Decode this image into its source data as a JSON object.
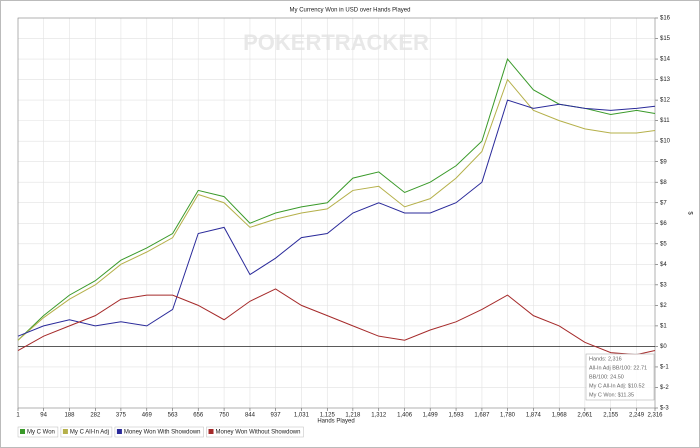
{
  "chart_data": {
    "type": "line",
    "title": "My Currency Won in USD over Hands Played",
    "watermark": "POKERTRACKER",
    "x_label": "Hands Played",
    "y_label": "$",
    "x": [
      1,
      94,
      188,
      282,
      375,
      469,
      563,
      656,
      750,
      844,
      937,
      1031,
      1125,
      1218,
      1312,
      1406,
      1499,
      1593,
      1687,
      1780,
      1874,
      1968,
      2061,
      2155,
      2249,
      2316
    ],
    "xlim": [
      1,
      2316
    ],
    "xticks": [
      1,
      94,
      188,
      282,
      375,
      469,
      563,
      656,
      750,
      844,
      937,
      {
        "value": 1031,
        "label": "1,031"
      },
      {
        "value": 1125,
        "label": "1,125"
      },
      {
        "value": 1218,
        "label": "1,218"
      },
      {
        "value": 1312,
        "label": "1,312"
      },
      {
        "value": 1406,
        "label": "1,406"
      },
      {
        "value": 1499,
        "label": "1,499"
      },
      {
        "value": 1593,
        "label": "1,593"
      },
      {
        "value": 1687,
        "label": "1,687"
      },
      {
        "value": 1780,
        "label": "1,780"
      },
      {
        "value": 1874,
        "label": "1,874"
      },
      {
        "value": 1968,
        "label": "1,968"
      },
      {
        "value": 2061,
        "label": "2,061"
      },
      {
        "value": 2155,
        "label": "2,155"
      },
      {
        "value": 2249,
        "label": "2,249"
      },
      {
        "value": 2316,
        "label": "2,316"
      }
    ],
    "ylim": [
      -3,
      16
    ],
    "yticks": [
      {
        "value": -3,
        "label": "$-3"
      },
      {
        "value": -2,
        "label": "$-2"
      },
      {
        "value": -1,
        "label": "$-1"
      },
      {
        "value": 0,
        "label": "$0"
      },
      {
        "value": 1,
        "label": "$1"
      },
      {
        "value": 2,
        "label": "$2"
      },
      {
        "value": 3,
        "label": "$3"
      },
      {
        "value": 4,
        "label": "$4"
      },
      {
        "value": 5,
        "label": "$5"
      },
      {
        "value": 6,
        "label": "$6"
      },
      {
        "value": 7,
        "label": "$7"
      },
      {
        "value": 8,
        "label": "$8"
      },
      {
        "value": 9,
        "label": "$9"
      },
      {
        "value": 10,
        "label": "$10"
      },
      {
        "value": 11,
        "label": "$11"
      },
      {
        "value": 12,
        "label": "$12"
      },
      {
        "value": 13,
        "label": "$13"
      },
      {
        "value": 14,
        "label": "$14"
      },
      {
        "value": 15,
        "label": "$15"
      },
      {
        "value": 16,
        "label": "$16"
      }
    ],
    "grid": true,
    "legend": "bottom",
    "series": [
      {
        "name": "My C Won",
        "color": "#3a9a2a",
        "values": [
          0.3,
          1.5,
          2.5,
          3.2,
          4.2,
          4.8,
          5.5,
          7.6,
          7.3,
          6.0,
          6.5,
          6.8,
          7.0,
          8.2,
          8.5,
          7.5,
          8.0,
          8.8,
          10.0,
          14.0,
          12.5,
          11.8,
          11.6,
          11.3,
          11.5,
          11.35
        ]
      },
      {
        "name": "My C All-In Adj",
        "color": "#b5b04a",
        "values": [
          0.3,
          1.4,
          2.3,
          3.0,
          4.0,
          4.6,
          5.3,
          7.4,
          7.0,
          5.8,
          6.2,
          6.5,
          6.7,
          7.6,
          7.8,
          6.8,
          7.2,
          8.2,
          9.5,
          13.0,
          11.5,
          11.0,
          10.6,
          10.4,
          10.4,
          10.52
        ]
      },
      {
        "name": "Money Won With Showdown",
        "color": "#2a2a9a",
        "values": [
          0.5,
          1.0,
          1.3,
          1.0,
          1.2,
          1.0,
          1.8,
          5.5,
          5.8,
          3.5,
          4.3,
          5.3,
          5.5,
          6.5,
          7.0,
          6.5,
          6.5,
          7.0,
          8.0,
          12.0,
          11.6,
          11.8,
          11.6,
          11.5,
          11.6,
          11.7
        ]
      },
      {
        "name": "Money Won Without Showdown",
        "color": "#a52a2a",
        "values": [
          -0.2,
          0.5,
          1.0,
          1.5,
          2.3,
          2.5,
          2.5,
          2.0,
          1.3,
          2.2,
          2.8,
          2.0,
          1.5,
          1.0,
          0.5,
          0.3,
          0.8,
          1.2,
          1.8,
          2.5,
          1.5,
          1.0,
          0.2,
          -0.3,
          -0.4,
          -0.2
        ]
      }
    ],
    "tooltip": [
      "Hands: 2,316",
      "All-In Adj BB/100: 22.71",
      "BB/100: 24.50",
      "My C All-In Adj: $10.52",
      "My C Won: $11.35"
    ]
  }
}
